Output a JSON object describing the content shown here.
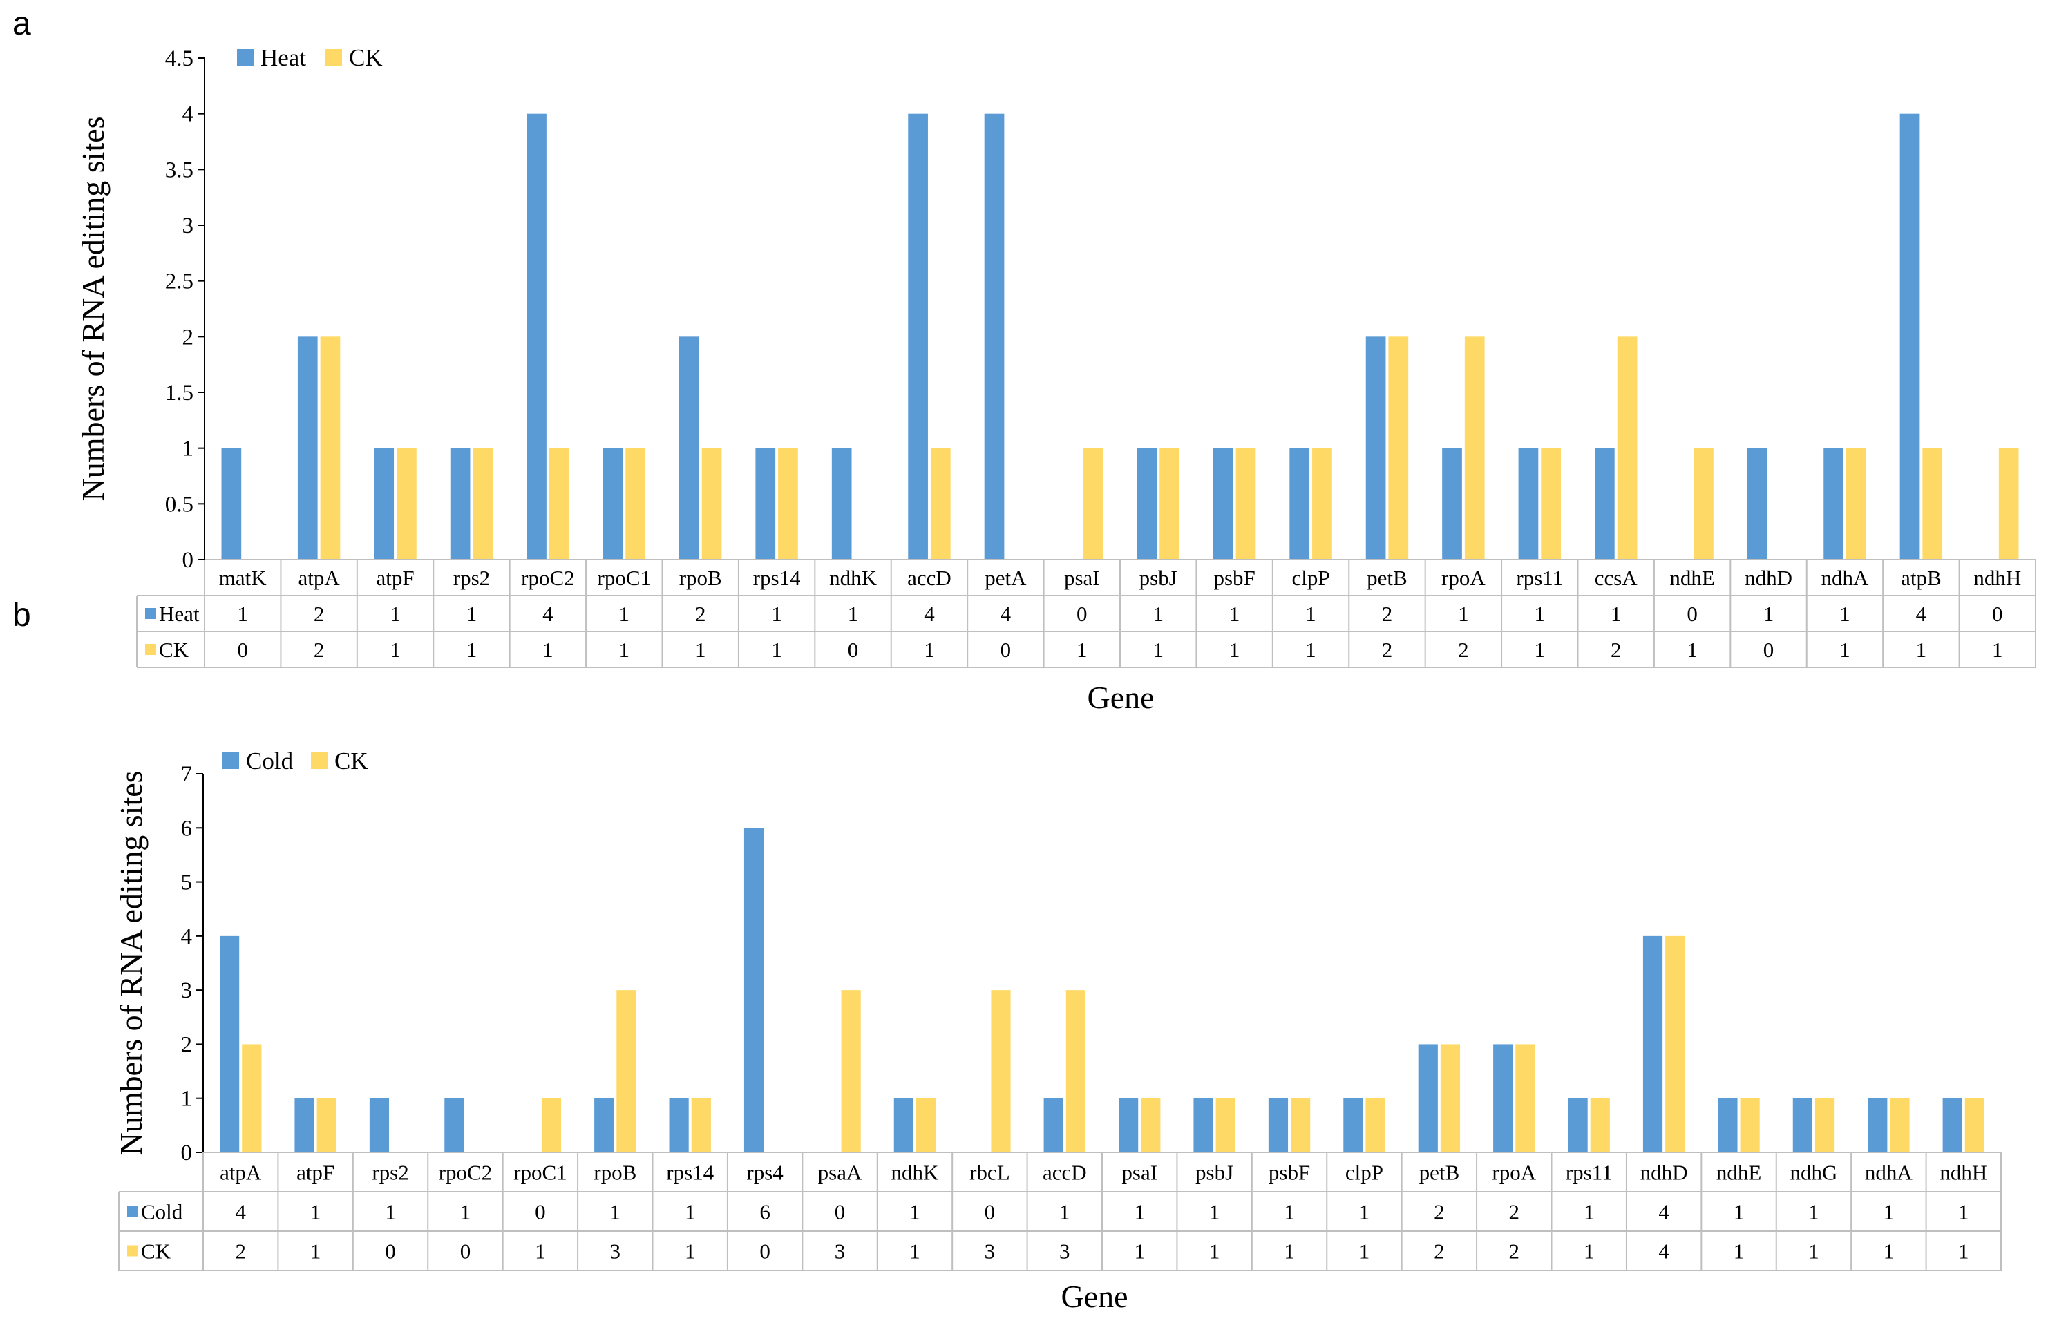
{
  "colors": {
    "series1": "#5b9bd5",
    "series2": "#ffd966",
    "grid": "#bfbfbf",
    "axis": "#000000"
  },
  "chart_data": [
    {
      "panel": "a",
      "type": "bar",
      "ylabel": "Numbers of RNA editing sites",
      "xlabel": "Gene",
      "ylim": [
        0,
        4.5
      ],
      "yticks": [
        "0",
        "0.5",
        "1",
        "1.5",
        "2",
        "2.5",
        "3",
        "3.5",
        "4",
        "4.5"
      ],
      "legend": "top-left",
      "categories": [
        "matK",
        "atpA",
        "atpF",
        "rps2",
        "rpoC2",
        "rpoC1",
        "rpoB",
        "rps14",
        "ndhK",
        "accD",
        "petA",
        "psaI",
        "psbJ",
        "psbF",
        "clpP",
        "petB",
        "rpoA",
        "rps11",
        "ccsA",
        "ndhE",
        "ndhD",
        "ndhA",
        "atpB",
        "ndhH"
      ],
      "series": [
        {
          "name": "Heat",
          "values": [
            1,
            2,
            1,
            1,
            4,
            1,
            2,
            1,
            1,
            4,
            4,
            0,
            1,
            1,
            1,
            2,
            1,
            1,
            1,
            0,
            1,
            1,
            4,
            0
          ]
        },
        {
          "name": "CK",
          "values": [
            0,
            2,
            1,
            1,
            1,
            1,
            1,
            1,
            0,
            1,
            0,
            1,
            1,
            1,
            1,
            2,
            2,
            1,
            2,
            1,
            0,
            1,
            1,
            1
          ]
        }
      ]
    },
    {
      "panel": "b",
      "type": "bar",
      "ylabel": "Numbers of RNA editing sites",
      "xlabel": "Gene",
      "ylim": [
        0,
        7
      ],
      "yticks": [
        "0",
        "1",
        "2",
        "3",
        "4",
        "5",
        "6",
        "7"
      ],
      "legend": "top-left",
      "categories": [
        "atpA",
        "atpF",
        "rps2",
        "rpoC2",
        "rpoC1",
        "rpoB",
        "rps14",
        "rps4",
        "psaA",
        "ndhK",
        "rbcL",
        "accD",
        "psaI",
        "psbJ",
        "psbF",
        "clpP",
        "petB",
        "rpoA",
        "rps11",
        "ndhD",
        "ndhE",
        "ndhG",
        "ndhA",
        "ndhH"
      ],
      "series": [
        {
          "name": "Cold",
          "values": [
            4,
            1,
            1,
            1,
            0,
            1,
            1,
            6,
            0,
            1,
            0,
            1,
            1,
            1,
            1,
            1,
            2,
            2,
            1,
            4,
            1,
            1,
            1,
            1
          ]
        },
        {
          "name": "CK",
          "values": [
            2,
            1,
            0,
            0,
            1,
            3,
            1,
            0,
            3,
            1,
            3,
            3,
            1,
            1,
            1,
            1,
            2,
            2,
            1,
            4,
            1,
            1,
            1,
            1
          ]
        }
      ]
    }
  ]
}
